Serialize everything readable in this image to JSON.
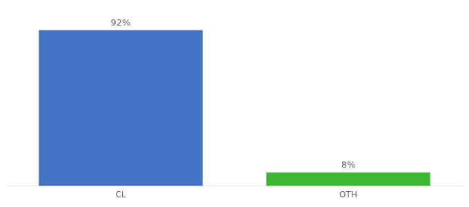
{
  "chart_data": {
    "type": "bar",
    "categories": [
      "CL",
      "OTH"
    ],
    "values": [
      92,
      8
    ],
    "value_labels": [
      "92%",
      "8%"
    ],
    "colors": [
      "#4472c4",
      "#3cb832"
    ],
    "ylim": [
      0,
      100
    ],
    "data_labels": true,
    "tick_labels": "x",
    "grid": false
  }
}
